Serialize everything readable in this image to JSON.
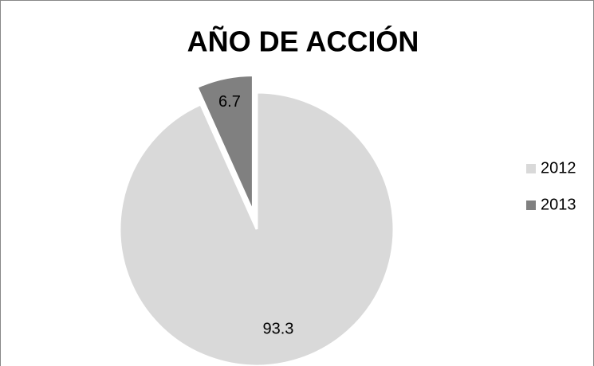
{
  "chart_data": {
    "type": "pie",
    "title": "AÑO DE ACCIÓN",
    "categories": [
      "2012",
      "2013"
    ],
    "values": [
      93.3,
      6.7
    ],
    "colors": [
      "#d9d9d9",
      "#808080"
    ],
    "exploded": [
      false,
      true
    ],
    "legend": "right"
  }
}
